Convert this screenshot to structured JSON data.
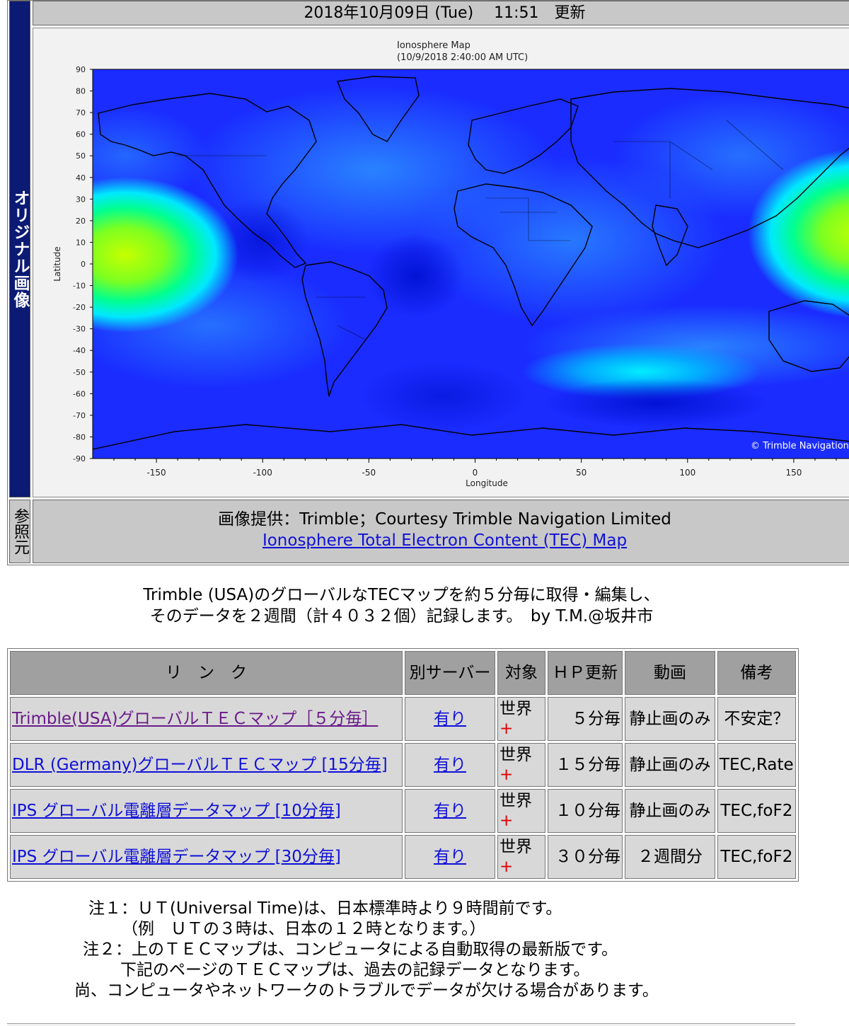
{
  "header": {
    "update_text": "2018年10月09日 (Tue)　 11:51　更新"
  },
  "side_labels": {
    "original": "オリジナル画像",
    "reference": "参照元"
  },
  "map": {
    "title_line1": "Ionosphere Map",
    "title_line2": "(10/9/2018 2:40:00 AM UTC)",
    "ylabel": "Latitude",
    "xlabel": "Longitude",
    "copyright": "© Trimble Navigation",
    "lat_ticks": [
      "90",
      "80",
      "70",
      "60",
      "50",
      "40",
      "30",
      "20",
      "10",
      "0",
      "-10",
      "-20",
      "-30",
      "-40",
      "-50",
      "-60",
      "-70",
      "-80",
      "-90"
    ],
    "lon_ticks": [
      "-150",
      "-100",
      "-50",
      "0",
      "50",
      "100",
      "150"
    ],
    "colors": {
      "background": "#1a2cff",
      "high": "#c6ff00",
      "mid": "#00e8ff"
    }
  },
  "reference": {
    "credit": "画像提供：Trimble；Courtesy Trimble Navigation Limited",
    "link_text": "Ionosphere Total Electron Content (TEC) Map"
  },
  "description": {
    "line1": "Trimble (USA)のグローバルなTECマップを約５分毎に取得・編集し、",
    "line2": "そのデータを２週間（計４０３２個）記録します。　by T.M.@坂井市"
  },
  "table": {
    "headers": {
      "link": "リ　ン　ク",
      "alt": "別サーバー",
      "target": "対象",
      "hp": "ＨＰ更新",
      "anim": "動画",
      "note": "備考"
    },
    "rows": [
      {
        "link": "Trimble(USA)グローバルＴＥＣマップ［５分毎］",
        "alt": "有り",
        "target": "世界",
        "plus": "+",
        "freq": "５分毎",
        "anim": "静止画のみ",
        "note": "不安定？"
      },
      {
        "link": "DLR (Germany)グローバルＴＥＣマップ [15分毎]",
        "alt": "有り",
        "target": "世界",
        "plus": "+",
        "freq": "１５分毎",
        "anim": "静止画のみ",
        "note": "TEC,Rate"
      },
      {
        "link": "IPS グローバル電離層データマップ [10分毎]",
        "alt": "有り",
        "target": "世界",
        "plus": "+",
        "freq": "１０分毎",
        "anim": "静止画のみ",
        "note": "TEC,foF2"
      },
      {
        "link": "IPS グローバル電離層データマップ [30分毎]",
        "alt": "有り",
        "target": "世界",
        "plus": "+",
        "freq": "３０分毎",
        "anim": "２週間分",
        "note": "TEC,foF2"
      }
    ]
  },
  "notes": [
    "注１：ＵＴ(Universal Time)は、日本標準時より９時間前です。",
    "（例　ＵＴの３時は、日本の１２時となります。）",
    "注２：上のＴＥＣマップは、コンピュータによる自動取得の最新版です。",
    "下記のページのＴＥＣマップは、過去の記録データとなります。",
    "尚、コンピュータやネットワークのトラブルでデータが欠ける場合があります。"
  ]
}
